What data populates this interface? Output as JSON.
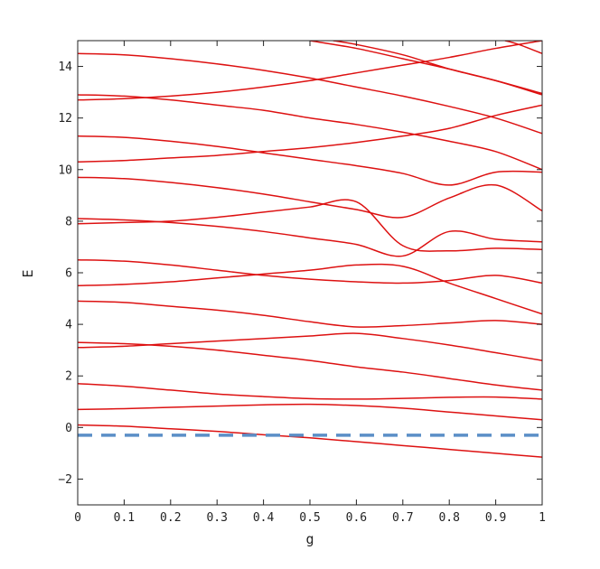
{
  "chart_data": {
    "type": "line",
    "xlabel": "g",
    "ylabel": "E",
    "xlim": [
      0,
      1
    ],
    "ylim": [
      -3,
      15
    ],
    "xticks": [
      0,
      0.1,
      0.2,
      0.3,
      0.4,
      0.5,
      0.6,
      0.7,
      0.8,
      0.9,
      1
    ],
    "xtick_labels": [
      "0",
      "0.1",
      "0.2",
      "0.3",
      "0.4",
      "0.5",
      "0.6",
      "0.7",
      "0.8",
      "0.9",
      "1"
    ],
    "yticks": [
      -2,
      0,
      2,
      4,
      6,
      8,
      10,
      12,
      14
    ],
    "ytick_labels": [
      "−2",
      "0",
      "2",
      "4",
      "6",
      "8",
      "10",
      "12",
      "14"
    ],
    "grid": false,
    "legend": "none",
    "series_color": "#dd1111",
    "reference_color": "#5b8fc7",
    "reference_line": {
      "y": -0.3,
      "style": "dashed"
    },
    "series": [
      {
        "x": [
          0,
          0.1,
          0.2,
          0.3,
          0.4,
          0.5,
          0.6,
          0.7,
          0.8,
          0.9,
          1
        ],
        "y": [
          0.1,
          0.05,
          -0.05,
          -0.15,
          -0.28,
          -0.4,
          -0.55,
          -0.7,
          -0.85,
          -1.0,
          -1.15
        ]
      },
      {
        "x": [
          0,
          0.1,
          0.2,
          0.3,
          0.4,
          0.5,
          0.6,
          0.7,
          0.8,
          0.9,
          1
        ],
        "y": [
          0.7,
          0.73,
          0.78,
          0.83,
          0.88,
          0.9,
          0.85,
          0.75,
          0.6,
          0.45,
          0.3
        ]
      },
      {
        "x": [
          0,
          0.1,
          0.2,
          0.3,
          0.4,
          0.5,
          0.6,
          0.7,
          0.8,
          0.9,
          1
        ],
        "y": [
          1.7,
          1.6,
          1.45,
          1.3,
          1.2,
          1.12,
          1.1,
          1.13,
          1.17,
          1.18,
          1.1
        ]
      },
      {
        "x": [
          0,
          0.1,
          0.2,
          0.3,
          0.4,
          0.5,
          0.6,
          0.7,
          0.8,
          0.9,
          1
        ],
        "y": [
          3.3,
          3.25,
          3.15,
          3.0,
          2.8,
          2.6,
          2.35,
          2.15,
          1.9,
          1.65,
          1.45
        ]
      },
      {
        "x": [
          0,
          0.1,
          0.2,
          0.3,
          0.4,
          0.5,
          0.6,
          0.7,
          0.8,
          0.9,
          1
        ],
        "y": [
          3.1,
          3.15,
          3.25,
          3.35,
          3.45,
          3.55,
          3.65,
          3.45,
          3.2,
          2.9,
          2.6
        ]
      },
      {
        "x": [
          0,
          0.1,
          0.2,
          0.3,
          0.4,
          0.5,
          0.6,
          0.7,
          0.8,
          0.9,
          1
        ],
        "y": [
          4.9,
          4.85,
          4.7,
          4.55,
          4.35,
          4.1,
          3.9,
          3.95,
          4.05,
          4.15,
          4.0
        ]
      },
      {
        "x": [
          0,
          0.1,
          0.2,
          0.3,
          0.4,
          0.5,
          0.6,
          0.7,
          0.8,
          0.9,
          1
        ],
        "y": [
          5.5,
          5.55,
          5.65,
          5.8,
          5.95,
          6.1,
          6.3,
          6.25,
          5.6,
          5.0,
          4.4
        ]
      },
      {
        "x": [
          0,
          0.1,
          0.2,
          0.3,
          0.4,
          0.5,
          0.6,
          0.7,
          0.8,
          0.9,
          1
        ],
        "y": [
          6.5,
          6.45,
          6.3,
          6.1,
          5.9,
          5.75,
          5.65,
          5.6,
          5.7,
          5.9,
          5.6
        ]
      },
      {
        "x": [
          0,
          0.1,
          0.2,
          0.3,
          0.4,
          0.5,
          0.6,
          0.7,
          0.8,
          0.9,
          1
        ],
        "y": [
          7.9,
          7.95,
          8.0,
          8.15,
          8.35,
          8.55,
          8.75,
          7.05,
          6.85,
          6.95,
          6.9
        ]
      },
      {
        "x": [
          0,
          0.1,
          0.2,
          0.3,
          0.4,
          0.5,
          0.6,
          0.7,
          0.8,
          0.9,
          1
        ],
        "y": [
          8.1,
          8.05,
          7.95,
          7.8,
          7.6,
          7.35,
          7.1,
          6.65,
          7.6,
          7.3,
          7.2
        ]
      },
      {
        "x": [
          0,
          0.1,
          0.2,
          0.3,
          0.4,
          0.5,
          0.6,
          0.7,
          0.8,
          0.9,
          1
        ],
        "y": [
          9.7,
          9.65,
          9.5,
          9.3,
          9.05,
          8.75,
          8.45,
          8.15,
          8.9,
          9.4,
          8.4
        ]
      },
      {
        "x": [
          0,
          0.1,
          0.2,
          0.3,
          0.4,
          0.5,
          0.6,
          0.7,
          0.8,
          0.9,
          1
        ],
        "y": [
          10.3,
          10.35,
          10.45,
          10.55,
          10.7,
          10.85,
          11.05,
          11.3,
          11.6,
          12.1,
          12.5
        ]
      },
      {
        "x": [
          0,
          0.1,
          0.2,
          0.3,
          0.4,
          0.5,
          0.6,
          0.7,
          0.8,
          0.9,
          1
        ],
        "y": [
          11.3,
          11.25,
          11.1,
          10.9,
          10.65,
          10.4,
          10.15,
          9.85,
          9.4,
          9.9,
          9.9
        ]
      },
      {
        "x": [
          0,
          0.1,
          0.2,
          0.3,
          0.4,
          0.5,
          0.6,
          0.7,
          0.8,
          0.9,
          1
        ],
        "y": [
          12.7,
          12.75,
          12.85,
          13.0,
          13.2,
          13.45,
          13.75,
          14.05,
          14.35,
          14.7,
          15.0
        ]
      },
      {
        "x": [
          0,
          0.1,
          0.2,
          0.3,
          0.4,
          0.5,
          0.6,
          0.7,
          0.8,
          0.9,
          1
        ],
        "y": [
          12.9,
          12.85,
          12.7,
          12.5,
          12.3,
          12.0,
          11.75,
          11.45,
          11.1,
          10.7,
          10.0
        ]
      },
      {
        "x": [
          0,
          0.1,
          0.2,
          0.3,
          0.4,
          0.5,
          0.6,
          0.7,
          0.8,
          0.9,
          1
        ],
        "y": [
          14.5,
          14.45,
          14.3,
          14.1,
          13.85,
          13.55,
          13.2,
          12.85,
          12.45,
          12.0,
          11.4
        ]
      },
      {
        "x": [
          0.5,
          0.6,
          0.7,
          0.8,
          0.9,
          1
        ],
        "y": [
          15.0,
          14.7,
          14.3,
          13.9,
          13.45,
          12.95
        ]
      },
      {
        "x": [
          0.55,
          0.6,
          0.7,
          0.8,
          0.9,
          1
        ],
        "y": [
          15.0,
          14.85,
          14.45,
          13.9,
          13.45,
          12.9
        ]
      },
      {
        "x": [
          0.92,
          0.95,
          1
        ],
        "y": [
          15.0,
          14.85,
          14.5
        ]
      }
    ]
  }
}
